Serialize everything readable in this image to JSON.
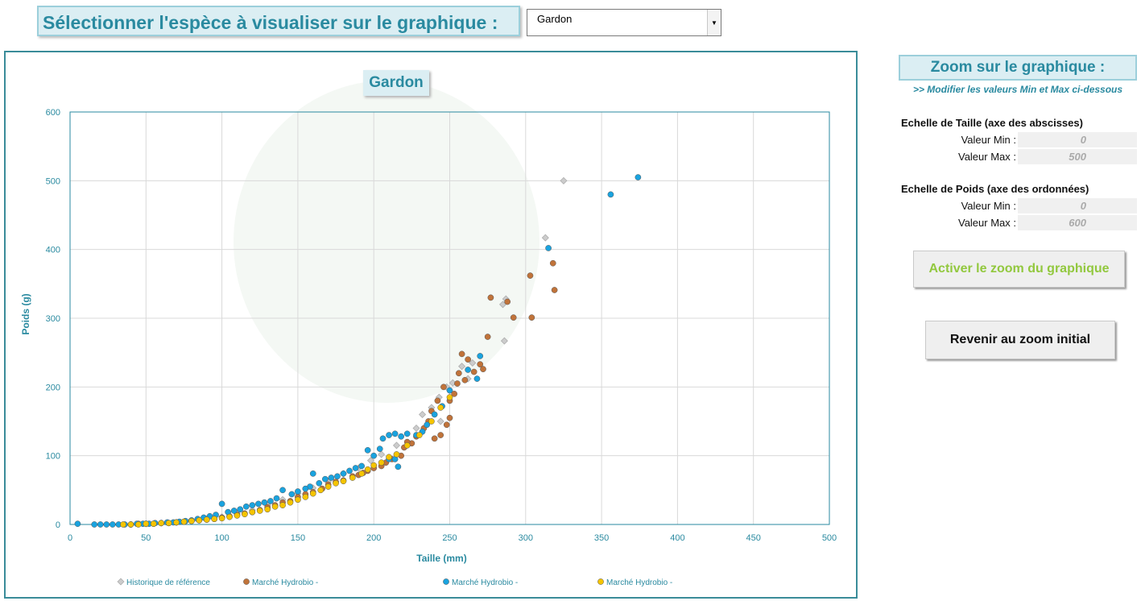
{
  "header": {
    "title": "Sélectionner l'espèce à visualiser sur le graphique :",
    "species_select": "Gardon"
  },
  "colors": {
    "accent": "#2a8aa0",
    "reference": "#cccccc",
    "series_brown": "#c0733a",
    "series_blue": "#1aa3df",
    "series_yellow": "#f5c400",
    "button_green": "#92c83e"
  },
  "zoom": {
    "title": "Zoom sur le graphique :",
    "subtitle": ">> Modifier les valeurs Min et Max ci-dessous",
    "x_scale_label": "Echelle de Taille (axe des abscisses)",
    "y_scale_label": "Echelle de Poids (axe des ordonnées)",
    "min_label": "Valeur Min :",
    "max_label": "Valeur Max :",
    "x_min": "0",
    "x_max": "500",
    "y_min": "0",
    "y_max": "600",
    "activate_button": "Activer le zoom du graphique",
    "reset_button": "Revenir au zoom initial"
  },
  "chart_data": {
    "type": "scatter",
    "title": "Gardon",
    "xlabel": "Taille (mm)",
    "ylabel": "Poids (g)",
    "xlim": [
      0,
      500
    ],
    "ylim": [
      0,
      600
    ],
    "x_ticks": [
      "0",
      "50",
      "100",
      "150",
      "200",
      "250",
      "300",
      "350",
      "400",
      "450",
      "500"
    ],
    "y_ticks": [
      "0",
      "100",
      "200",
      "300",
      "400",
      "500",
      "600"
    ],
    "grid": true,
    "legend_position": "bottom",
    "series": [
      {
        "name": "Historique de référence",
        "marker": "diamond",
        "color": "#cccccc",
        "points": [
          [
            325,
            500
          ],
          [
            313,
            417
          ],
          [
            287,
            328
          ],
          [
            285,
            320
          ],
          [
            286,
            267
          ],
          [
            265,
            235
          ],
          [
            258,
            230
          ],
          [
            262,
            212
          ],
          [
            252,
            206
          ],
          [
            248,
            200
          ],
          [
            243,
            185
          ],
          [
            238,
            170
          ],
          [
            232,
            160
          ],
          [
            244,
            150
          ],
          [
            228,
            140
          ],
          [
            215,
            115
          ],
          [
            205,
            102
          ],
          [
            198,
            93
          ],
          [
            190,
            82
          ],
          [
            180,
            74
          ],
          [
            170,
            62
          ],
          [
            160,
            53
          ],
          [
            150,
            45
          ],
          [
            140,
            36
          ],
          [
            130,
            28
          ],
          [
            120,
            21
          ],
          [
            110,
            16
          ],
          [
            100,
            11
          ],
          [
            90,
            8
          ],
          [
            80,
            5
          ],
          [
            70,
            3
          ],
          [
            60,
            2
          ],
          [
            50,
            1
          ]
        ]
      },
      {
        "name": "Marché Hydrobio -",
        "marker": "circle",
        "color": "#c0733a",
        "points": [
          [
            318,
            380
          ],
          [
            319,
            341
          ],
          [
            303,
            362
          ],
          [
            288,
            324
          ],
          [
            277,
            330
          ],
          [
            292,
            301
          ],
          [
            304,
            301
          ],
          [
            275,
            273
          ],
          [
            270,
            233
          ],
          [
            266,
            222
          ],
          [
            272,
            226
          ],
          [
            258,
            248
          ],
          [
            262,
            240
          ],
          [
            256,
            220
          ],
          [
            260,
            210
          ],
          [
            255,
            205
          ],
          [
            253,
            190
          ],
          [
            250,
            180
          ],
          [
            246,
            200
          ],
          [
            242,
            180
          ],
          [
            238,
            165
          ],
          [
            236,
            150
          ],
          [
            233,
            140
          ],
          [
            250,
            155
          ],
          [
            248,
            145
          ],
          [
            244,
            130
          ],
          [
            240,
            125
          ],
          [
            228,
            128
          ],
          [
            225,
            118
          ],
          [
            222,
            120
          ],
          [
            220,
            112
          ],
          [
            218,
            100
          ],
          [
            212,
            95
          ],
          [
            208,
            90
          ],
          [
            205,
            85
          ],
          [
            200,
            82
          ],
          [
            196,
            78
          ],
          [
            193,
            75
          ],
          [
            190,
            72
          ],
          [
            186,
            70
          ],
          [
            180,
            64
          ],
          [
            175,
            62
          ],
          [
            170,
            58
          ],
          [
            166,
            52
          ],
          [
            160,
            47
          ],
          [
            155,
            44
          ],
          [
            150,
            40
          ],
          [
            145,
            34
          ],
          [
            140,
            32
          ],
          [
            135,
            28
          ],
          [
            130,
            25
          ],
          [
            125,
            21
          ],
          [
            120,
            18
          ],
          [
            115,
            16
          ],
          [
            110,
            14
          ],
          [
            105,
            12
          ],
          [
            100,
            10
          ],
          [
            95,
            8
          ],
          [
            90,
            7
          ],
          [
            85,
            6
          ],
          [
            80,
            5
          ],
          [
            75,
            4
          ],
          [
            70,
            3
          ],
          [
            65,
            2
          ],
          [
            60,
            2
          ],
          [
            55,
            1
          ],
          [
            50,
            1
          ],
          [
            45,
            1
          ],
          [
            40,
            0
          ]
        ]
      },
      {
        "name": "Marché Hydrobio -",
        "marker": "circle",
        "color": "#1aa3df",
        "points": [
          [
            374,
            505
          ],
          [
            356,
            480
          ],
          [
            315,
            402
          ],
          [
            270,
            245
          ],
          [
            262,
            225
          ],
          [
            268,
            212
          ],
          [
            250,
            195
          ],
          [
            245,
            172
          ],
          [
            240,
            160
          ],
          [
            235,
            145
          ],
          [
            232,
            135
          ],
          [
            228,
            130
          ],
          [
            222,
            132
          ],
          [
            218,
            128
          ],
          [
            214,
            132
          ],
          [
            210,
            130
          ],
          [
            206,
            125
          ],
          [
            204,
            110
          ],
          [
            210,
            95
          ],
          [
            214,
            95
          ],
          [
            216,
            84
          ],
          [
            200,
            100
          ],
          [
            196,
            108
          ],
          [
            192,
            85
          ],
          [
            188,
            82
          ],
          [
            184,
            78
          ],
          [
            180,
            74
          ],
          [
            176,
            70
          ],
          [
            172,
            68
          ],
          [
            168,
            66
          ],
          [
            164,
            60
          ],
          [
            160,
            74
          ],
          [
            158,
            55
          ],
          [
            155,
            52
          ],
          [
            150,
            48
          ],
          [
            146,
            44
          ],
          [
            140,
            50
          ],
          [
            136,
            38
          ],
          [
            132,
            34
          ],
          [
            128,
            32
          ],
          [
            124,
            30
          ],
          [
            120,
            28
          ],
          [
            116,
            26
          ],
          [
            112,
            22
          ],
          [
            108,
            20
          ],
          [
            104,
            18
          ],
          [
            100,
            30
          ],
          [
            96,
            14
          ],
          [
            92,
            12
          ],
          [
            88,
            10
          ],
          [
            84,
            8
          ],
          [
            80,
            6
          ],
          [
            76,
            5
          ],
          [
            72,
            4
          ],
          [
            68,
            3
          ],
          [
            64,
            3
          ],
          [
            60,
            2
          ],
          [
            56,
            2
          ],
          [
            52,
            1
          ],
          [
            48,
            1
          ],
          [
            44,
            1
          ],
          [
            40,
            0
          ],
          [
            36,
            0
          ],
          [
            32,
            0
          ],
          [
            28,
            0
          ],
          [
            24,
            0
          ],
          [
            20,
            0
          ],
          [
            16,
            0
          ],
          [
            5,
            1
          ]
        ]
      },
      {
        "name": "Marché Hydrobio -",
        "marker": "circle",
        "color": "#f5c400",
        "points": [
          [
            250,
            185
          ],
          [
            244,
            170
          ],
          [
            238,
            150
          ],
          [
            230,
            130
          ],
          [
            222,
            115
          ],
          [
            215,
            102
          ],
          [
            210,
            98
          ],
          [
            205,
            90
          ],
          [
            200,
            86
          ],
          [
            196,
            80
          ],
          [
            192,
            74
          ],
          [
            186,
            68
          ],
          [
            180,
            63
          ],
          [
            175,
            60
          ],
          [
            170,
            55
          ],
          [
            165,
            50
          ],
          [
            160,
            45
          ],
          [
            155,
            40
          ],
          [
            150,
            36
          ],
          [
            145,
            32
          ],
          [
            140,
            28
          ],
          [
            135,
            26
          ],
          [
            130,
            22
          ],
          [
            125,
            20
          ],
          [
            120,
            18
          ],
          [
            115,
            15
          ],
          [
            110,
            13
          ],
          [
            105,
            11
          ],
          [
            100,
            9
          ],
          [
            95,
            8
          ],
          [
            90,
            7
          ],
          [
            85,
            6
          ],
          [
            80,
            5
          ],
          [
            75,
            4
          ],
          [
            70,
            3
          ],
          [
            65,
            2
          ],
          [
            60,
            2
          ],
          [
            55,
            1
          ],
          [
            50,
            1
          ],
          [
            45,
            0
          ],
          [
            40,
            0
          ],
          [
            35,
            0
          ]
        ]
      }
    ]
  }
}
